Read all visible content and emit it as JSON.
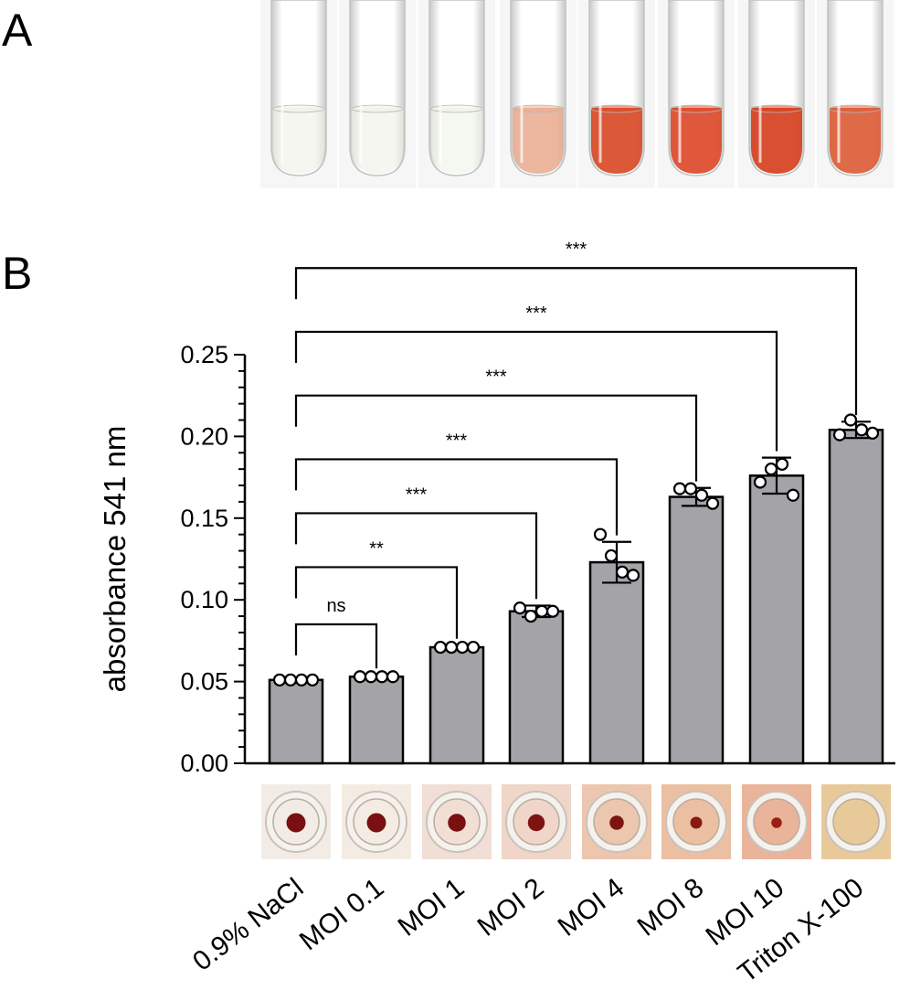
{
  "panels": {
    "a": "A",
    "b": "B"
  },
  "colors": {
    "bar": "#a4a4a8",
    "point": "#ffffff",
    "lysis": "#cc2a12"
  },
  "tubes": [
    {
      "name": "0.9% NaCl",
      "tint": "#eef0e4",
      "opacity": 0.6
    },
    {
      "name": "MOI 0.1",
      "tint": "#eef0e6",
      "opacity": 0.6
    },
    {
      "name": "MOI 1",
      "tint": "#eff1e8",
      "opacity": 0.6
    },
    {
      "name": "MOI 2",
      "tint": "#e9a98e",
      "opacity": 0.85
    },
    {
      "name": "MOI 4",
      "tint": "#d84a28",
      "opacity": 0.92
    },
    {
      "name": "MOI 8",
      "tint": "#dc4a2a",
      "opacity": 0.92
    },
    {
      "name": "MOI 10",
      "tint": "#d5401f",
      "opacity": 0.92
    },
    {
      "name": "Triton X-100",
      "tint": "#db5a34",
      "opacity": 0.9
    }
  ],
  "wells": [
    {
      "bg": "#f3ece6",
      "pellet": "#7a1010",
      "pellet_r": 0.3
    },
    {
      "bg": "#f4ece2",
      "pellet": "#7a1010",
      "pellet_r": 0.3
    },
    {
      "bg": "#f1dfd6",
      "pellet": "#7a1010",
      "pellet_r": 0.27
    },
    {
      "bg": "#efd6c8",
      "pellet": "#7e1410",
      "pellet_r": 0.25
    },
    {
      "bg": "#ecc6ae",
      "pellet": "#7e1410",
      "pellet_r": 0.19
    },
    {
      "bg": "#ebc0a2",
      "pellet": "#8a1812",
      "pellet_r": 0.14
    },
    {
      "bg": "#eab49a",
      "pellet": "#9a1e14",
      "pellet_r": 0.11
    },
    {
      "bg": "#e8c99a",
      "pellet": "#e8c99a",
      "pellet_r": 0
    }
  ],
  "chart_data": {
    "type": "bar",
    "title": "",
    "xlabel": "",
    "ylabel": "absorbance 541 nm",
    "ylim": [
      0,
      0.25
    ],
    "yticks": [
      "0.00",
      "0.05",
      "0.10",
      "0.15",
      "0.20",
      "0.25"
    ],
    "ytick_values": [
      0,
      0.05,
      0.1,
      0.15,
      0.2,
      0.25
    ],
    "categories": [
      "0.9% NaCl",
      "MOI 0.1",
      "MOI 1",
      "MOI 2",
      "MOI 4",
      "MOI 8",
      "MOI 10",
      "Triton X-100"
    ],
    "values": [
      0.051,
      0.053,
      0.071,
      0.093,
      0.123,
      0.163,
      0.176,
      0.204
    ],
    "sd": [
      0.0012,
      0.001,
      0.0012,
      0.0035,
      0.0125,
      0.0055,
      0.011,
      0.005
    ],
    "points": [
      [
        0.051,
        0.051,
        0.051,
        0.051
      ],
      [
        0.053,
        0.053,
        0.053,
        0.053
      ],
      [
        0.071,
        0.071,
        0.071,
        0.071
      ],
      [
        0.095,
        0.09,
        0.093,
        0.093
      ],
      [
        0.14,
        0.127,
        0.117,
        0.115
      ],
      [
        0.168,
        0.168,
        0.164,
        0.159
      ],
      [
        0.172,
        0.18,
        0.183,
        0.164
      ],
      [
        0.201,
        0.21,
        0.204,
        0.202
      ]
    ],
    "comparisons": [
      {
        "from": 0,
        "to": 1,
        "label": "ns",
        "y": 0.085
      },
      {
        "from": 0,
        "to": 2,
        "label": "**",
        "y": 0.12
      },
      {
        "from": 0,
        "to": 3,
        "label": "***",
        "y": 0.153
      },
      {
        "from": 0,
        "to": 4,
        "label": "***",
        "y": 0.186
      },
      {
        "from": 0,
        "to": 5,
        "label": "***",
        "y": 0.225
      },
      {
        "from": 0,
        "to": 6,
        "label": "***",
        "y": 0.264
      },
      {
        "from": 0,
        "to": 7,
        "label": "***",
        "y": 0.303
      }
    ]
  }
}
